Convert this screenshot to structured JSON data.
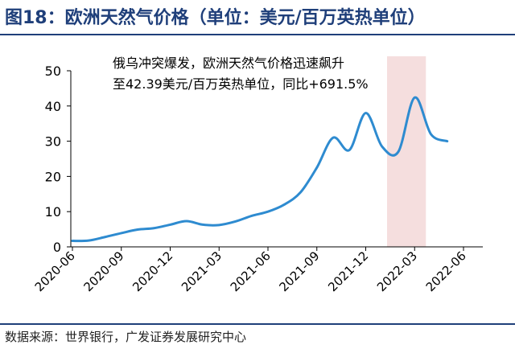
{
  "title": "图18：欧洲天然气价格（单位：美元/百万英热单位）",
  "source": "数据来源：世界银行，广发证券发展研究中心",
  "annotation": {
    "line1": "俄乌冲突爆发，欧洲天然气价格迅速飙升",
    "line2": "至42.39美元/百万英热单位，同比+691.5%"
  },
  "colors": {
    "line": "#2e8bd0",
    "title": "#1f3f7a",
    "highlight": "#f5dede"
  },
  "chart_data": {
    "type": "line",
    "title": "",
    "xlabel": "",
    "ylabel": "",
    "ylim": [
      0,
      50
    ],
    "yticks": [
      0,
      10,
      20,
      30,
      40,
      50
    ],
    "xtick_labels": [
      "2020-06",
      "2020-09",
      "2020-12",
      "2021-03",
      "2021-06",
      "2021-09",
      "2021-12",
      "2022-03",
      "2022-06"
    ],
    "grid": false,
    "highlight_range": [
      "2022-02",
      "2022-03"
    ],
    "x": [
      "2020-06",
      "2020-07",
      "2020-08",
      "2020-09",
      "2020-10",
      "2020-11",
      "2020-12",
      "2021-01",
      "2021-02",
      "2021-03",
      "2021-04",
      "2021-05",
      "2021-06",
      "2021-07",
      "2021-08",
      "2021-09",
      "2021-10",
      "2021-11",
      "2021-12",
      "2022-01",
      "2022-02",
      "2022-03",
      "2022-04",
      "2022-05"
    ],
    "series": [
      {
        "values": [
          1.7,
          1.8,
          2.8,
          3.9,
          4.9,
          5.3,
          6.3,
          7.3,
          6.3,
          6.2,
          7.2,
          8.8,
          10.0,
          12.0,
          15.5,
          22.5,
          31.0,
          27.5,
          38.0,
          28.5,
          27.0,
          42.39,
          32.0,
          30.0
        ]
      }
    ]
  }
}
